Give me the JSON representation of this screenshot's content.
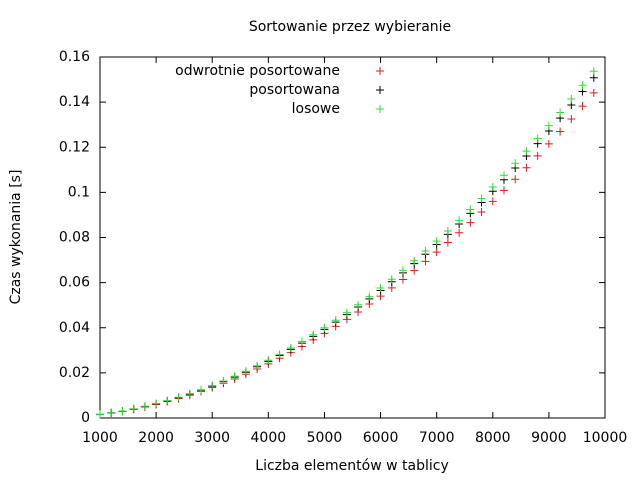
{
  "chart_data": {
    "type": "scatter",
    "title": "Sortowanie przez wybieranie",
    "xlabel": "Liczba elementów w tablicy",
    "ylabel": "Czas wykonania [s]",
    "x": [
      1000,
      1200,
      1400,
      1600,
      1800,
      2000,
      2200,
      2400,
      2600,
      2800,
      3000,
      3200,
      3400,
      3600,
      3800,
      4000,
      4200,
      4400,
      4600,
      4800,
      5000,
      5200,
      5400,
      5600,
      5800,
      6000,
      6200,
      6400,
      6600,
      6800,
      7000,
      7200,
      7400,
      7600,
      7800,
      8000,
      8200,
      8400,
      8600,
      8800,
      9000,
      9200,
      9400,
      9600,
      9800
    ],
    "series": [
      {
        "name": "odwrotnie posortowane",
        "color": "#e41a1c",
        "values": [
          0.0015,
          0.0022,
          0.0029,
          0.0038,
          0.0049,
          0.006,
          0.0073,
          0.0086,
          0.0101,
          0.0118,
          0.0135,
          0.0154,
          0.0173,
          0.0194,
          0.0217,
          0.024,
          0.0265,
          0.029,
          0.0317,
          0.0346,
          0.0375,
          0.0406,
          0.0437,
          0.047,
          0.0505,
          0.054,
          0.0577,
          0.0614,
          0.0653,
          0.0694,
          0.0735,
          0.0778,
          0.0821,
          0.0866,
          0.0913,
          0.096,
          0.1009,
          0.1058,
          0.1109,
          0.1162,
          0.1215,
          0.127,
          0.1325,
          0.1382,
          0.1441
        ]
      },
      {
        "name": "posortowana",
        "color": "#000000",
        "values": [
          0.0016,
          0.0023,
          0.0031,
          0.004,
          0.0051,
          0.0063,
          0.0076,
          0.009,
          0.0106,
          0.0123,
          0.0141,
          0.0161,
          0.0181,
          0.0203,
          0.0227,
          0.0251,
          0.0277,
          0.0304,
          0.0332,
          0.0362,
          0.0393,
          0.0425,
          0.0458,
          0.0492,
          0.0528,
          0.0565,
          0.0604,
          0.0643,
          0.0684,
          0.0726,
          0.0769,
          0.0814,
          0.086,
          0.0907,
          0.0955,
          0.1005,
          0.1056,
          0.1108,
          0.1161,
          0.1216,
          0.1272,
          0.1329,
          0.1387,
          0.1447,
          0.1508
        ]
      },
      {
        "name": "losowe",
        "color": "#33dd33",
        "values": [
          0.0016,
          0.0023,
          0.0031,
          0.0041,
          0.0052,
          0.0064,
          0.0077,
          0.0092,
          0.0108,
          0.0125,
          0.0144,
          0.0164,
          0.0185,
          0.0207,
          0.0231,
          0.0256,
          0.0282,
          0.031,
          0.0339,
          0.0369,
          0.04,
          0.0433,
          0.0467,
          0.0502,
          0.0538,
          0.0576,
          0.0615,
          0.0655,
          0.0697,
          0.074,
          0.0784,
          0.0829,
          0.0876,
          0.0924,
          0.0973,
          0.1024,
          0.1076,
          0.1129,
          0.1183,
          0.1239,
          0.1296,
          0.1354,
          0.1414,
          0.1475,
          0.1537
        ]
      }
    ],
    "xlim": [
      1000,
      10000
    ],
    "xticks": [
      1000,
      2000,
      3000,
      4000,
      5000,
      6000,
      7000,
      8000,
      9000,
      10000
    ],
    "ylim": [
      0,
      0.16
    ],
    "yticks": [
      0,
      0.02,
      0.04,
      0.06,
      0.08,
      0.1,
      0.12,
      0.14,
      0.16
    ],
    "grid": false,
    "legend": "top-left"
  }
}
